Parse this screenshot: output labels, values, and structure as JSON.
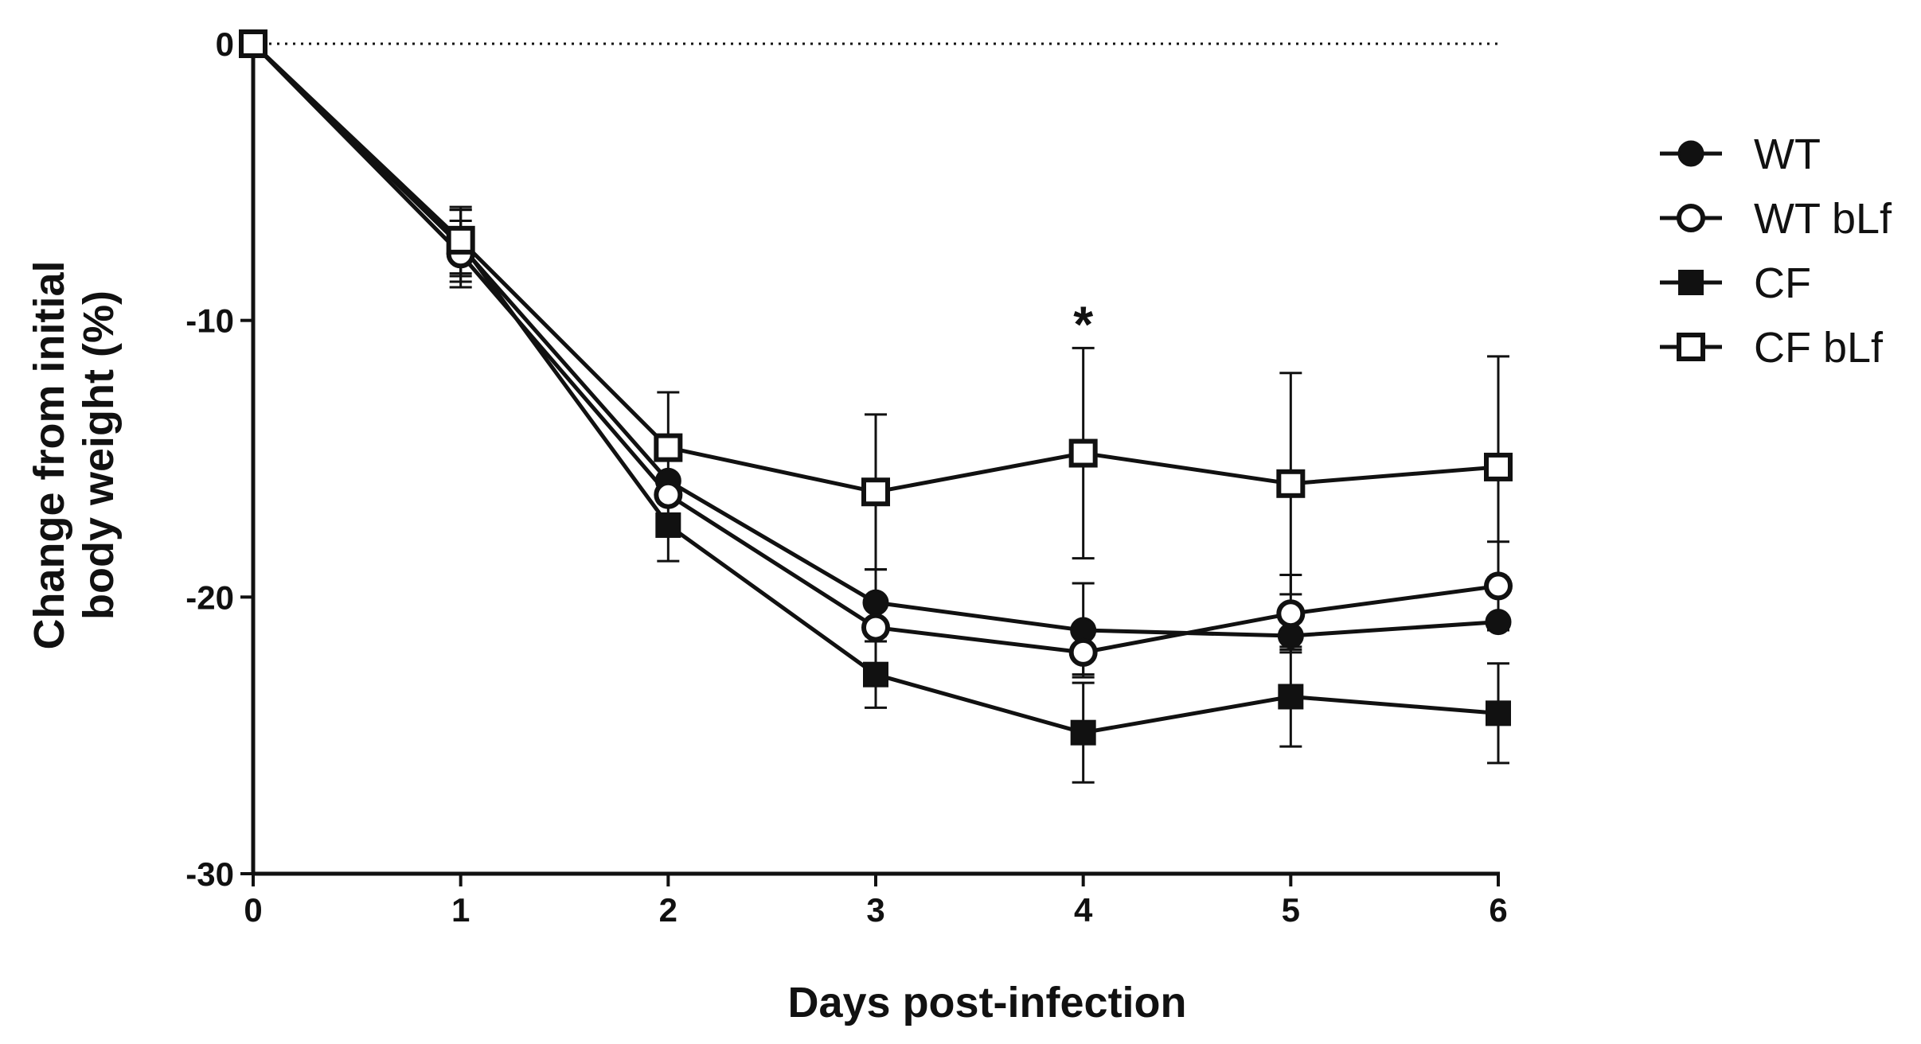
{
  "chart_data": {
    "type": "line",
    "title": "",
    "xlabel": "Days post-infection",
    "ylabel_lines": [
      "Change from initial",
      "body weight (%)"
    ],
    "x": [
      0,
      1,
      2,
      3,
      4,
      5,
      6
    ],
    "xticks": [
      "0",
      "1",
      "2",
      "3",
      "4",
      "5",
      "6"
    ],
    "yticks": [
      "0",
      "-10",
      "-20",
      "-30"
    ],
    "ytick_values": [
      0,
      -10,
      -20,
      -30
    ],
    "xlim": [
      0,
      6
    ],
    "ylim": [
      -30,
      0
    ],
    "reference_line": {
      "y": 0,
      "style": "dotted"
    },
    "series": [
      {
        "name": "WT",
        "marker": "filled-circle",
        "values": [
          0,
          -7.3,
          -15.8,
          -20.2,
          -21.2,
          -21.4,
          -20.9
        ],
        "errors": [
          0,
          1.3,
          0,
          1.2,
          1.7,
          0.5,
          0
        ]
      },
      {
        "name": "WT bLf",
        "marker": "open-circle",
        "values": [
          0,
          -7.6,
          -16.3,
          -21.1,
          -22.0,
          -20.6,
          -19.6
        ],
        "errors": [
          0,
          1.2,
          0,
          0,
          0.8,
          1.4,
          1.6
        ]
      },
      {
        "name": "CF",
        "marker": "filled-square",
        "values": [
          0,
          -7.2,
          -17.4,
          -22.8,
          -24.9,
          -23.6,
          -24.2
        ],
        "errors": [
          0,
          1.2,
          1.3,
          1.2,
          1.8,
          1.8,
          1.8
        ]
      },
      {
        "name": "CF bLf",
        "marker": "open-square",
        "values": [
          0,
          -7.1,
          -14.6,
          -16.2,
          -14.8,
          -15.9,
          -15.3
        ],
        "errors": [
          0,
          1.2,
          2.0,
          2.8,
          3.8,
          4.0,
          4.0
        ]
      }
    ],
    "annotations": [
      {
        "x": 4,
        "text": "*"
      }
    ],
    "legend": {
      "position": "right"
    },
    "colors": {
      "line": "#111111",
      "background": "#ffffff"
    }
  }
}
